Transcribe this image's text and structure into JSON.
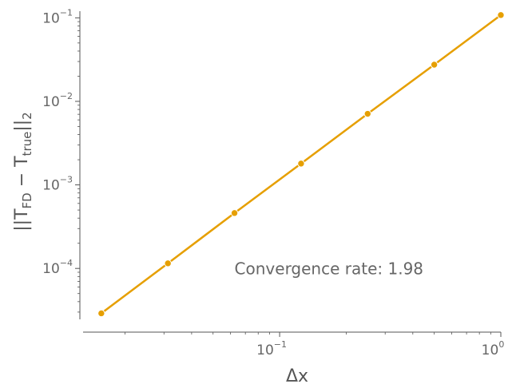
{
  "chart_data": {
    "type": "line",
    "scale": {
      "x": "log",
      "y": "log"
    },
    "xlim": [
      0.0125,
      1.0
    ],
    "ylim": [
      2.2e-05,
      0.11
    ],
    "grid": false,
    "xlabel": "Δx",
    "ylabel": "||T_FD − T_true||_2",
    "ylabel_parts": {
      "norm_open": "||T",
      "sub_fd": "FD",
      "minus": " − T",
      "sub_true": "true",
      "norm_close": "||",
      "sub_two": "2"
    },
    "series": [
      {
        "color": "#E69F00",
        "x": [
          0.015625,
          0.03125,
          0.0625,
          0.125,
          0.25,
          0.5,
          1.0
        ],
        "y": [
          2.9e-05,
          0.000115,
          0.00046,
          0.0018,
          0.0071,
          0.0275,
          0.108
        ]
      }
    ],
    "x_ticks": [
      {
        "value": 0.1,
        "base": "10",
        "exp": "−1"
      },
      {
        "value": 1.0,
        "base": "10",
        "exp": "0"
      }
    ],
    "y_ticks": [
      {
        "value": 0.1,
        "base": "10",
        "exp": "−1"
      },
      {
        "value": 0.01,
        "base": "10",
        "exp": "−2"
      },
      {
        "value": 0.001,
        "base": "10",
        "exp": "−3"
      },
      {
        "value": 0.0001,
        "base": "10",
        "exp": "−4"
      }
    ],
    "annotation": {
      "text": "Convergence rate: 1.98",
      "x": 0.0625,
      "y": 8.5e-05
    }
  }
}
